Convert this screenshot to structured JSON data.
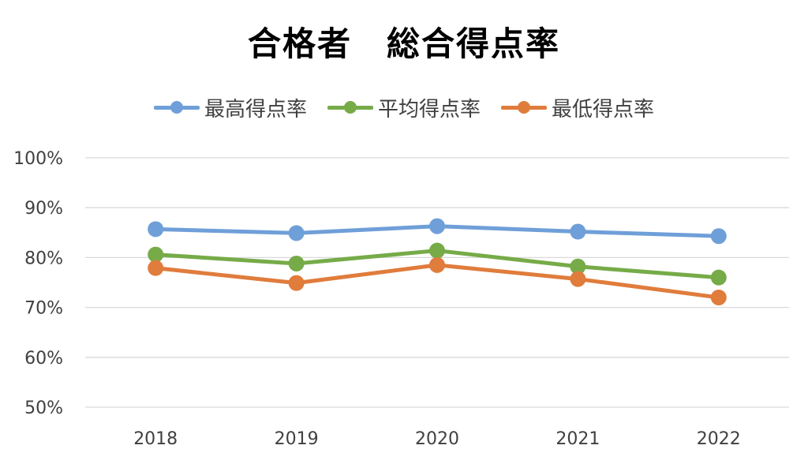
{
  "chart_data": {
    "type": "line",
    "title": "合格者　総合得点率",
    "categories": [
      "2018",
      "2019",
      "2020",
      "2021",
      "2022"
    ],
    "ylim": [
      0.5,
      1.0
    ],
    "y_ticks": [
      "50%",
      "60%",
      "70%",
      "80%",
      "90%",
      "100%"
    ],
    "grid": true,
    "legend_position": "top",
    "series": [
      {
        "name": "最高得点率",
        "color": "#6f9fd8",
        "values": [
          0.857,
          0.849,
          0.863,
          0.852,
          0.843
        ]
      },
      {
        "name": "平均得点率",
        "color": "#76ab48",
        "values": [
          0.806,
          0.788,
          0.814,
          0.782,
          0.76
        ]
      },
      {
        "name": "最低得点率",
        "color": "#e07c3c",
        "values": [
          0.779,
          0.749,
          0.785,
          0.757,
          0.72
        ]
      }
    ]
  }
}
